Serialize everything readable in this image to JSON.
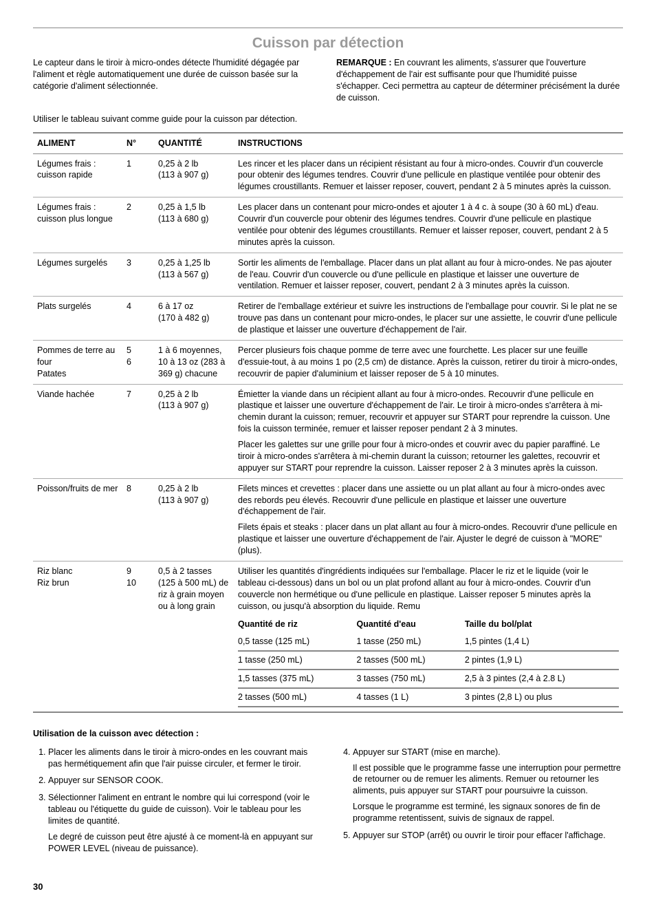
{
  "title": "Cuisson par détection",
  "intro_left": "Le capteur dans le tiroir à micro-ondes détecte l'humidité dégagée par l'aliment et règle automatiquement une durée de cuisson basée sur la catégorie d'aliment sélectionnée.",
  "intro_right_label": "REMARQUE :",
  "intro_right_text": " En couvrant les aliments, s'assurer que l'ouverture d'échappement de l'air est suffisante pour que l'humidité puisse s'échapper. Ceci permettra au capteur de déterminer précisément la durée de cuisson.",
  "guide_line": "Utiliser le tableau suivant comme guide pour la cuisson par détection.",
  "headers": {
    "aliment": "ALIMENT",
    "n": "N°",
    "quantite": "QUANTITÉ",
    "instructions": "INSTRUCTIONS"
  },
  "rows": [
    {
      "aliment": "Légumes frais : cuisson rapide",
      "n": "1",
      "quantite": "0,25 à 2 lb\n(113 à 907 g)",
      "instr": [
        "Les rincer et les placer dans un récipient résistant au four à micro-ondes. Couvrir d'un couvercle pour obtenir des légumes tendres. Couvrir d'une pellicule en plastique ventilée pour obtenir des légumes croustillants. Remuer et laisser reposer, couvert, pendant 2 à 5 minutes après la cuisson."
      ]
    },
    {
      "aliment": "Légumes frais : cuisson plus longue",
      "n": "2",
      "quantite": "0,25 à 1,5 lb\n(113 à 680 g)",
      "instr": [
        "Les placer dans un contenant pour micro-ondes et ajouter 1 à 4 c. à soupe (30 à 60 mL) d'eau. Couvrir d'un couvercle pour obtenir des légumes tendres. Couvrir d'une pellicule en plastique ventilée pour obtenir des légumes croustillants. Remuer et laisser reposer, couvert, pendant 2 à 5 minutes après la cuisson."
      ]
    },
    {
      "aliment": "Légumes surgelés",
      "n": "3",
      "quantite": "0,25 à 1,25 lb\n(113 à 567 g)",
      "instr": [
        "Sortir les aliments de l'emballage. Placer dans un plat allant au four à micro-ondes. Ne pas ajouter de l'eau. Couvrir d'un couvercle ou d'une pellicule en plastique et laisser une ouverture de ventilation. Remuer et laisser reposer, couvert, pendant 2 à 3 minutes après la cuisson."
      ]
    },
    {
      "aliment": "Plats surgelés",
      "n": "4",
      "quantite": "6 à 17 oz\n(170 à 482 g)",
      "instr": [
        "Retirer de l'emballage extérieur et suivre les instructions de l'emballage pour couvrir. Si le plat ne se trouve pas dans un contenant pour micro-ondes, le placer sur une assiette, le couvrir d'une pellicule de plastique et laisser une ouverture d'échappement de l'air."
      ]
    },
    {
      "aliment": "Pommes de terre au four\nPatates",
      "n": "5\n6",
      "quantite": "1 à 6 moyennes, 10 à 13 oz (283 à 369 g) chacune",
      "instr": [
        "Percer plusieurs fois chaque pomme de terre avec une fourchette. Les placer sur une feuille d'essuie-tout, à au moins 1 po (2,5 cm) de distance. Après la cuisson, retirer du tiroir à micro-ondes, recouvrir de papier d'aluminium et laisser reposer de 5 à 10 minutes."
      ]
    },
    {
      "aliment": "Viande hachée",
      "n": "7",
      "quantite": "0,25 à 2 lb\n(113 à 907 g)",
      "instr": [
        "Émietter la viande dans un récipient allant au four à micro-ondes. Recouvrir d'une pellicule en plastique et laisser une ouverture d'échappement de l'air. Le tiroir à micro-ondes s'arrêtera à mi-chemin durant la cuisson; remuer, recouvrir et appuyer sur START pour reprendre la cuisson. Une fois la cuisson terminée, remuer et laisser reposer pendant 2 à 3 minutes.",
        "Placer les galettes sur une grille pour four à micro-ondes et couvrir avec du papier paraffiné. Le tiroir à micro-ondes s'arrêtera à mi-chemin durant la cuisson; retourner les galettes, recouvrir et appuyer sur START pour reprendre la cuisson. Laisser reposer 2 à 3 minutes après la cuisson."
      ]
    },
    {
      "aliment": "Poisson/fruits de mer",
      "n": "8",
      "quantite": "0,25 à 2 lb\n(113 à 907 g)",
      "instr": [
        "Filets minces et crevettes : placer dans une assiette ou un plat allant au four à micro-ondes avec des rebords peu élevés. Recouvrir d'une pellicule en plastique et laisser une ouverture d'échappement de l'air.",
        "Filets épais et steaks : placer dans un plat allant au four à micro-ondes. Recouvrir d'une pellicule en plastique et laisser une ouverture d'échappement de l'air. Ajuster le degré de cuisson à \"MORE\" (plus)."
      ]
    },
    {
      "aliment": "Riz blanc\nRiz brun",
      "n": "9\n10",
      "quantite": "0,5 à 2 tasses (125 à 500 mL) de riz à grain moyen ou à long grain",
      "instr": [
        "Utiliser les quantités d'ingrédients indiquées sur l'emballage. Placer le riz et le liquide (voir le tableau ci-dessous) dans un bol ou un plat profond allant au four à micro-ondes. Couvrir d'un couvercle non hermétique ou d'une pellicule en plastique. Laisser reposer 5 minutes après la cuisson, ou jusqu'à absorption du liquide. Remu"
      ],
      "sub_headers": {
        "riz": "Quantité de riz",
        "eau": "Quantité d'eau",
        "bol": "Taille du bol/plat"
      },
      "sub_rows": [
        {
          "riz": "0,5 tasse (125 mL)",
          "eau": "1 tasse (250 mL)",
          "bol": "1,5 pintes (1,4 L)"
        },
        {
          "riz": "1 tasse (250 mL)",
          "eau": "2 tasses (500 mL)",
          "bol": "2 pintes (1,9 L)"
        },
        {
          "riz": "1,5 tasses (375 mL)",
          "eau": "3 tasses (750 mL)",
          "bol": "2,5 à 3 pintes (2,4 à 2.8 L)"
        },
        {
          "riz": "2 tasses (500 mL)",
          "eau": "4 tasses (1 L)",
          "bol": "3 pintes (2,8 L) ou plus"
        }
      ]
    }
  ],
  "usage_title": "Utilisation de la cuisson avec détection :",
  "usage_left": [
    {
      "text": "Placer les aliments dans le tiroir à micro-ondes en les couvrant mais pas hermétiquement afin que l'air puisse circuler, et fermer le tiroir."
    },
    {
      "text": "Appuyer sur SENSOR COOK."
    },
    {
      "text": "Sélectionner l'aliment en entrant le nombre qui lui correspond (voir le tableau ou l'étiquette du guide de cuisson). Voir le tableau pour les limites de quantité.",
      "extra": "Le degré de cuisson peut être ajusté à ce moment-là en appuyant sur POWER LEVEL (niveau de puissance)."
    }
  ],
  "usage_right": [
    {
      "text": "Appuyer sur START (mise en marche).",
      "extra1": "Il est possible que le programme fasse une interruption pour permettre de retourner ou de remuer les aliments. Remuer ou retourner les aliments, puis appuyer sur START pour poursuivre la cuisson.",
      "extra2": "Lorsque le programme est terminé, les signaux sonores de fin de programme retentissent, suivis de signaux de rappel."
    },
    {
      "text": "Appuyer sur STOP (arrêt) ou ouvrir le tiroir pour effacer l'affichage."
    }
  ],
  "page_number": "30"
}
